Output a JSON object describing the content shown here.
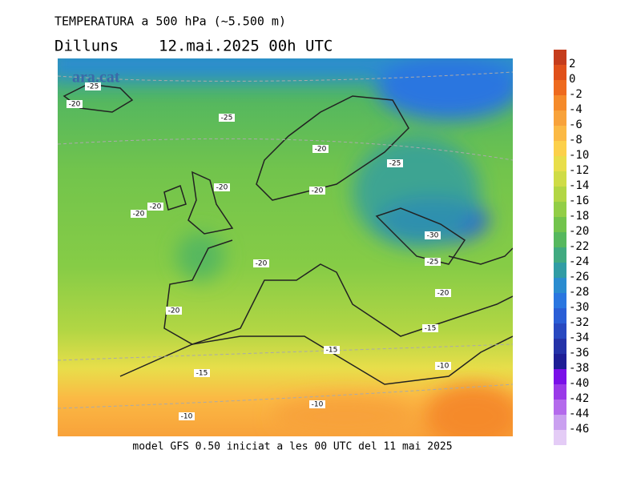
{
  "header": {
    "title": "TEMPERATURA a 500 hPa (~5.500 m)",
    "day": "Dilluns",
    "date": "12.mai.2025 00h UTC"
  },
  "watermark": "ara.cat",
  "footer": "model GFS 0.50 iniciat a les 00 UTC del 11 mai 2025",
  "contour_labels": [
    -25,
    -20,
    -25,
    -20,
    -25,
    -20,
    -20,
    -20,
    -20,
    -30,
    -20,
    -25,
    -20,
    -20,
    -15,
    -15,
    -10,
    -15,
    -10,
    -10
  ],
  "colorbar": {
    "labels": [
      2,
      0,
      -2,
      -4,
      -6,
      -8,
      -10,
      -12,
      -14,
      -16,
      -18,
      -20,
      -22,
      -24,
      -26,
      -28,
      -30,
      -32,
      -34,
      -36,
      -38,
      -40,
      -42,
      -44,
      -46
    ],
    "colors": [
      "#c53c1c",
      "#e0501a",
      "#ee6a1e",
      "#f58a2a",
      "#f8a23a",
      "#fbb944",
      "#fcd04a",
      "#e8de4a",
      "#cfdc46",
      "#b2d644",
      "#92ce46",
      "#72c44c",
      "#56b85e",
      "#40aa80",
      "#309ca4",
      "#2a8cd0",
      "#2a76e0",
      "#2a5ed6",
      "#2848c0",
      "#2432a8",
      "#1e1e96",
      "#7a10e8",
      "#9a3ae8",
      "#b46aec",
      "#caa0f0",
      "#e4ccf6"
    ]
  }
}
